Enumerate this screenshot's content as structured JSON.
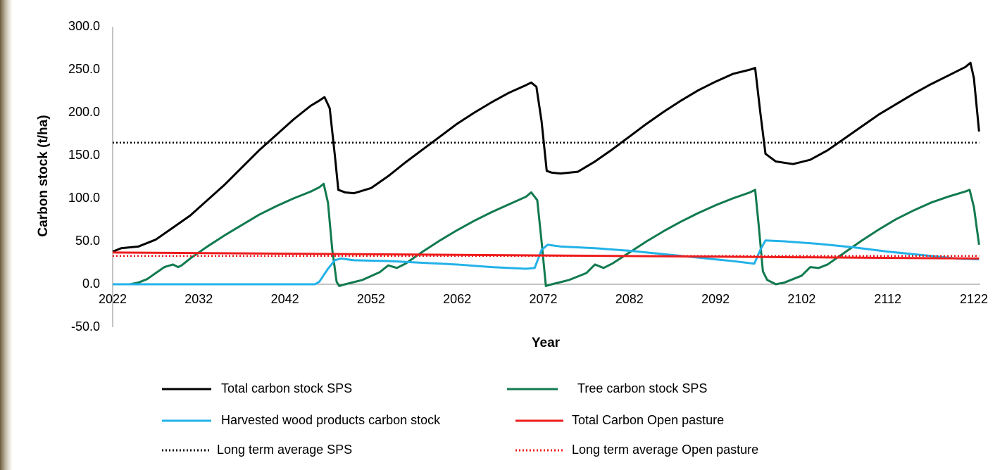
{
  "chart_data": {
    "type": "line",
    "xlabel": "Year",
    "ylabel": "Carbon stock (t/ha)",
    "xlim": [
      2022,
      2122
    ],
    "xticks": [
      2022,
      2032,
      2042,
      2052,
      2062,
      2072,
      2082,
      2092,
      2102,
      2112,
      2122
    ],
    "ylim": [
      -50,
      300
    ],
    "yticks": [
      {
        "value": -50,
        "label": "-50.0"
      },
      {
        "value": 0,
        "label": "0.0"
      },
      {
        "value": 50,
        "label": "50.0"
      },
      {
        "value": 100,
        "label": "100.0"
      },
      {
        "value": 150,
        "label": "150.0"
      },
      {
        "value": 200,
        "label": "200.0"
      },
      {
        "value": 250,
        "label": "250.0"
      },
      {
        "value": 300,
        "label": "300.0"
      }
    ],
    "grid": false,
    "series": [
      {
        "name": "Total carbon stock SPS",
        "color": "#000000",
        "style": "solid",
        "x": [
          2022,
          2023,
          2025,
          2027,
          2029,
          2031,
          2033,
          2035,
          2037,
          2039,
          2041,
          2043,
          2045,
          2046,
          2046.6,
          2047.2,
          2047.8,
          2048.2,
          2049,
          2050,
          2052,
          2054,
          2056,
          2058,
          2060,
          2062,
          2064,
          2066,
          2068,
          2070,
          2070.6,
          2071.2,
          2071.8,
          2072.4,
          2073,
          2074,
          2076,
          2078,
          2080,
          2082,
          2084,
          2086,
          2088,
          2090,
          2092,
          2094,
          2096,
          2096.6,
          2097.2,
          2097.8,
          2099,
          2101,
          2103,
          2105,
          2107,
          2109,
          2111,
          2113,
          2115,
          2117,
          2119,
          2121,
          2121.6,
          2122,
          2122.6
        ],
        "values": [
          38,
          42,
          44,
          52,
          66,
          80,
          98,
          116,
          136,
          156,
          174,
          192,
          208,
          214,
          218,
          205,
          150,
          110,
          107,
          106,
          112,
          126,
          142,
          157,
          172,
          187,
          200,
          212,
          223,
          232,
          235,
          230,
          190,
          132,
          130,
          129,
          131,
          143,
          157,
          172,
          187,
          201,
          214,
          226,
          236,
          245,
          250,
          252,
          200,
          152,
          143,
          140,
          145,
          156,
          170,
          184,
          198,
          210,
          222,
          233,
          243,
          253,
          258,
          240,
          178
        ]
      },
      {
        "name": "Tree carbon stock SPS",
        "color": "#117a4f",
        "style": "solid",
        "x": [
          2022,
          2024,
          2025,
          2026,
          2027,
          2028,
          2029,
          2029.6,
          2030,
          2031,
          2033,
          2035,
          2037,
          2039,
          2041,
          2043,
          2045,
          2046,
          2046.5,
          2047,
          2047.5,
          2048,
          2048.3,
          2049,
          2051,
          2053,
          2054,
          2055,
          2056,
          2058,
          2060,
          2062,
          2064,
          2066,
          2068,
          2070,
          2070.6,
          2071.3,
          2071.8,
          2072.3,
          2073,
          2075,
          2077,
          2078,
          2079,
          2080,
          2082,
          2084,
          2086,
          2088,
          2090,
          2092,
          2094,
          2096,
          2096.6,
          2097,
          2097.5,
          2098,
          2099,
          2100,
          2102,
          2103,
          2104,
          2105,
          2107,
          2109,
          2111,
          2113,
          2115,
          2117,
          2119,
          2121,
          2121.5,
          2122,
          2122.6
        ],
        "values": [
          0,
          0,
          2,
          6,
          13,
          20,
          23,
          20,
          22,
          30,
          44,
          57,
          69,
          81,
          91,
          100,
          108,
          113,
          117,
          95,
          40,
          3,
          -2,
          0,
          5,
          14,
          22,
          19,
          24,
          38,
          51,
          63,
          74,
          84,
          93,
          102,
          107,
          98,
          50,
          -2,
          0,
          5,
          13,
          23,
          19,
          24,
          37,
          50,
          62,
          73,
          83,
          92,
          100,
          107,
          110,
          70,
          15,
          5,
          0,
          2,
          10,
          20,
          19,
          23,
          37,
          51,
          64,
          76,
          86,
          95,
          102,
          108,
          110,
          90,
          46
        ]
      },
      {
        "name": "Harvested wood products carbon stock",
        "color": "#22b2e8",
        "style": "solid",
        "x": [
          2022,
          2045.5,
          2046,
          2047,
          2047.8,
          2048.5,
          2050,
          2054,
          2058,
          2062,
          2066,
          2070,
          2071,
          2071.8,
          2072.5,
          2074,
          2078,
          2082,
          2086,
          2090,
          2094,
          2096.5,
          2097.2,
          2097.8,
          2100,
          2104,
          2108,
          2112,
          2116,
          2120,
          2122.6
        ],
        "values": [
          0,
          0,
          3,
          18,
          28,
          30,
          28,
          27,
          25,
          23,
          20,
          18,
          19,
          40,
          46,
          44,
          42,
          39,
          35,
          31,
          27,
          24,
          40,
          51,
          50,
          47,
          43,
          38,
          34,
          30,
          29
        ]
      },
      {
        "name": "Total Carbon Open pasture",
        "color": "#ee1c1c",
        "style": "solid",
        "x": [
          2022,
          2122.6
        ],
        "values": [
          37,
          30
        ]
      },
      {
        "name": "Long term average SPS",
        "color": "#000000",
        "style": "dotted",
        "x": [
          2022,
          2122.6
        ],
        "values": [
          165,
          165
        ]
      },
      {
        "name": "Long term average Open pasture",
        "color": "#ee1c1c",
        "style": "dotted",
        "x": [
          2022,
          2122.6
        ],
        "values": [
          33,
          33
        ]
      }
    ]
  }
}
